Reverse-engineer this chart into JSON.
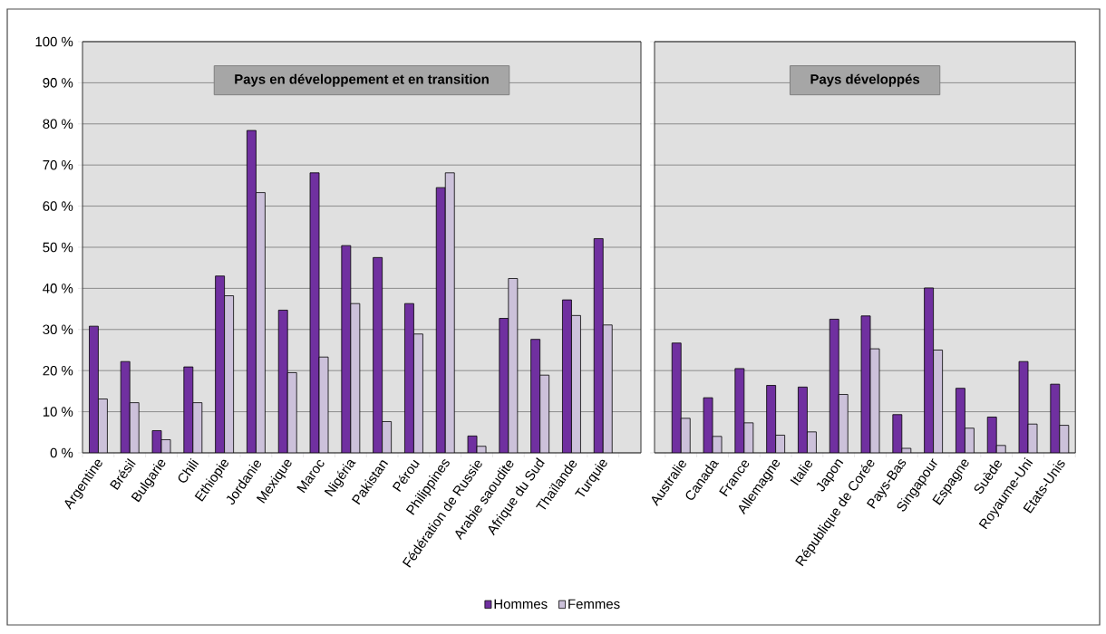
{
  "chart_data": [
    {
      "type": "bar",
      "title": "Pays en développement et en transition",
      "categories": [
        "Argentine",
        "Brésil",
        "Bulgarie",
        "Chili",
        "Ethiopie",
        "Jordanie",
        "Mexique",
        "Maroc",
        "Nigéria",
        "Pakistan",
        "Pérou",
        "Philippines",
        "Fédération de Russie",
        "Arabie saoudite",
        "Afrique du Sud",
        "Thaïlande",
        "Turquie"
      ],
      "series": [
        {
          "name": "Hommes",
          "color": "#7030a0",
          "values": [
            30.8,
            22.2,
            5.4,
            20.9,
            43.0,
            78.4,
            34.7,
            68.1,
            50.4,
            47.5,
            36.3,
            64.5,
            4.1,
            32.7,
            27.6,
            37.2,
            52.1
          ]
        },
        {
          "name": "Femmes",
          "color": "#ccc1da",
          "values": [
            13.1,
            12.2,
            3.2,
            12.2,
            38.2,
            63.3,
            19.5,
            23.3,
            36.3,
            7.6,
            28.9,
            68.1,
            1.6,
            42.4,
            18.9,
            33.4,
            31.1
          ]
        }
      ],
      "ylim": [
        0,
        100
      ],
      "yticks": [
        {
          "value": 0,
          "label": "0 %"
        },
        {
          "value": 10,
          "label": "10 %"
        },
        {
          "value": 20,
          "label": "20 %"
        },
        {
          "value": 30,
          "label": "30 %"
        },
        {
          "value": 40,
          "label": "40 %"
        },
        {
          "value": 50,
          "label": "50 %"
        },
        {
          "value": 60,
          "label": "60 %"
        },
        {
          "value": 70,
          "label": "70 %"
        },
        {
          "value": 80,
          "label": "80 %"
        },
        {
          "value": 90,
          "label": "90 %"
        },
        {
          "value": 100,
          "label": "100 %"
        }
      ],
      "grid": "y",
      "legend": "bottom"
    },
    {
      "type": "bar",
      "title": "Pays développés",
      "categories": [
        "Australie",
        "Canada",
        "France",
        "Allemagne",
        "Italie",
        "Japon",
        "République de Corée",
        "Pays-Bas",
        "Singapour",
        "Espagne",
        "Suède",
        "Royaume-Uni",
        "Etats-Unis"
      ],
      "series": [
        {
          "color": "#7030a0",
          "values": [
            26.7,
            13.4,
            20.5,
            16.4,
            16.0,
            32.5,
            33.3,
            9.3,
            40.1,
            15.7,
            8.7,
            22.2,
            16.7
          ]
        },
        {
          "color": "#ccc1da",
          "values": [
            8.4,
            4.0,
            7.3,
            4.3,
            5.1,
            14.2,
            25.3,
            1.1,
            25.0,
            6.0,
            1.8,
            7.0,
            6.7
          ]
        }
      ],
      "ylim": [
        0,
        100
      ],
      "yticks": [
        0,
        10,
        20,
        30,
        40,
        50,
        60,
        70,
        80,
        90,
        100
      ],
      "grid": "y",
      "tick_labels": "x"
    }
  ]
}
